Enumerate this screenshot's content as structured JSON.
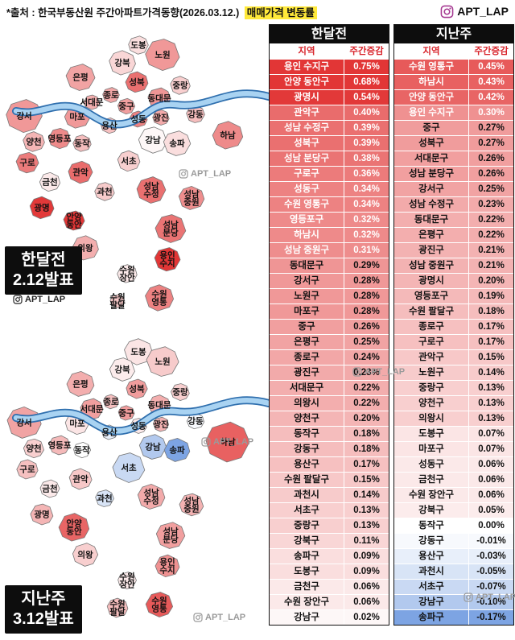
{
  "header": {
    "source_text": "*출처 : 한국부동산원 주간아파트가격동향(2026.03.12.)",
    "highlight_text": "매매가격 변동률",
    "highlight_color": "#ffe93a",
    "account": "APT_LAP"
  },
  "watermark_account": "APT_LAP",
  "maps": [
    {
      "badge_line1": "한달전",
      "badge_line2": "2.12발표",
      "table": 0
    },
    {
      "badge_line1": "지난주",
      "badge_line2": "3.12발표",
      "table": 1
    }
  ],
  "map_regions": [
    {
      "key": "도봉구",
      "lines": [
        "도봉"
      ]
    },
    {
      "key": "강북구",
      "lines": [
        "강북"
      ]
    },
    {
      "key": "노원구",
      "lines": [
        "노원"
      ]
    },
    {
      "key": "은평구",
      "lines": [
        "은평"
      ]
    },
    {
      "key": "성북구",
      "lines": [
        "성북"
      ]
    },
    {
      "key": "종로구",
      "lines": [
        "종로"
      ]
    },
    {
      "key": "중랑구",
      "lines": [
        "중랑"
      ]
    },
    {
      "key": "서대문구",
      "lines": [
        "서대문"
      ]
    },
    {
      "key": "동대문구",
      "lines": [
        "동대문"
      ]
    },
    {
      "key": "마포구",
      "lines": [
        "마포"
      ]
    },
    {
      "key": "중구",
      "lines": [
        "중구"
      ]
    },
    {
      "key": "성동구",
      "lines": [
        "성동"
      ]
    },
    {
      "key": "광진구",
      "lines": [
        "광진"
      ]
    },
    {
      "key": "강동구",
      "lines": [
        "강동"
      ]
    },
    {
      "key": "하남시",
      "lines": [
        "하남"
      ]
    },
    {
      "key": "강서구",
      "lines": [
        "강서"
      ]
    },
    {
      "key": "양천구",
      "lines": [
        "양천"
      ]
    },
    {
      "key": "영등포구",
      "lines": [
        "영등포"
      ]
    },
    {
      "key": "구로구",
      "lines": [
        "구로"
      ]
    },
    {
      "key": "동작구",
      "lines": [
        "동작"
      ]
    },
    {
      "key": "용산구",
      "lines": [
        "용산"
      ]
    },
    {
      "key": "서초구",
      "lines": [
        "서초"
      ]
    },
    {
      "key": "강남구",
      "lines": [
        "강남"
      ]
    },
    {
      "key": "송파구",
      "lines": [
        "송파"
      ]
    },
    {
      "key": "금천구",
      "lines": [
        "금천"
      ]
    },
    {
      "key": "관악구",
      "lines": [
        "관악"
      ]
    },
    {
      "key": "광명시",
      "lines": [
        "광명"
      ]
    },
    {
      "key": "과천시",
      "lines": [
        "과천"
      ]
    },
    {
      "key": "안양 동안구",
      "lines": [
        "안양",
        "동안"
      ]
    },
    {
      "key": "의왕시",
      "lines": [
        "의왕"
      ]
    },
    {
      "key": "성남 수정구",
      "lines": [
        "성남",
        "수정"
      ]
    },
    {
      "key": "성남 중원구",
      "lines": [
        "성남",
        "중원"
      ]
    },
    {
      "key": "성남 분당구",
      "lines": [
        "성남",
        "분당"
      ]
    },
    {
      "key": "용인 수지구",
      "lines": [
        "용인",
        "수지"
      ]
    },
    {
      "key": "수원 장안구",
      "lines": [
        "수원",
        "장안"
      ]
    },
    {
      "key": "수원 팔달구",
      "lines": [
        "수원",
        "팔달"
      ]
    },
    {
      "key": "수원 영통구",
      "lines": [
        "수원",
        "영통"
      ]
    }
  ],
  "colors": {
    "positive_max": "#e23636",
    "negative_max": "#407ad6",
    "title_bg": "#0d0d0d",
    "header_text": "#d8232a"
  },
  "chart_data": {
    "type": "table",
    "title": "매매가격 변동률",
    "tables": [
      {
        "title": "한달전",
        "columns": [
          "지역",
          "주간증감"
        ],
        "rows": [
          [
            "용인 수지구",
            0.75
          ],
          [
            "안양 동안구",
            0.68
          ],
          [
            "광명시",
            0.54
          ],
          [
            "관악구",
            0.4
          ],
          [
            "성남 수정구",
            0.39
          ],
          [
            "성북구",
            0.39
          ],
          [
            "성남 분당구",
            0.38
          ],
          [
            "구로구",
            0.36
          ],
          [
            "성동구",
            0.34
          ],
          [
            "수원 영통구",
            0.34
          ],
          [
            "영등포구",
            0.32
          ],
          [
            "하남시",
            0.32
          ],
          [
            "성남 중원구",
            0.31
          ],
          [
            "동대문구",
            0.29
          ],
          [
            "강서구",
            0.28
          ],
          [
            "노원구",
            0.28
          ],
          [
            "마포구",
            0.28
          ],
          [
            "중구",
            0.26
          ],
          [
            "은평구",
            0.25
          ],
          [
            "종로구",
            0.24
          ],
          [
            "광진구",
            0.23
          ],
          [
            "서대문구",
            0.22
          ],
          [
            "의왕시",
            0.22
          ],
          [
            "양천구",
            0.2
          ],
          [
            "동작구",
            0.18
          ],
          [
            "강동구",
            0.18
          ],
          [
            "용산구",
            0.17
          ],
          [
            "수원 팔달구",
            0.15
          ],
          [
            "과천시",
            0.14
          ],
          [
            "서초구",
            0.13
          ],
          [
            "중랑구",
            0.13
          ],
          [
            "강북구",
            0.11
          ],
          [
            "송파구",
            0.09
          ],
          [
            "도봉구",
            0.09
          ],
          [
            "금천구",
            0.06
          ],
          [
            "수원 장안구",
            0.06
          ],
          [
            "강남구",
            0.02
          ]
        ]
      },
      {
        "title": "지난주",
        "columns": [
          "지역",
          "주간증감"
        ],
        "rows": [
          [
            "수원 영통구",
            0.45
          ],
          [
            "하남시",
            0.43
          ],
          [
            "안양 동안구",
            0.42
          ],
          [
            "용인 수지구",
            0.3
          ],
          [
            "중구",
            0.27
          ],
          [
            "성북구",
            0.27
          ],
          [
            "서대문구",
            0.26
          ],
          [
            "성남 분당구",
            0.26
          ],
          [
            "강서구",
            0.25
          ],
          [
            "성남 수정구",
            0.23
          ],
          [
            "동대문구",
            0.22
          ],
          [
            "은평구",
            0.22
          ],
          [
            "광진구",
            0.21
          ],
          [
            "성남 중원구",
            0.21
          ],
          [
            "광명시",
            0.2
          ],
          [
            "영등포구",
            0.19
          ],
          [
            "수원 팔달구",
            0.18
          ],
          [
            "종로구",
            0.17
          ],
          [
            "구로구",
            0.17
          ],
          [
            "관악구",
            0.15
          ],
          [
            "노원구",
            0.14
          ],
          [
            "중랑구",
            0.13
          ],
          [
            "양천구",
            0.13
          ],
          [
            "의왕시",
            0.13
          ],
          [
            "도봉구",
            0.07
          ],
          [
            "마포구",
            0.07
          ],
          [
            "성동구",
            0.06
          ],
          [
            "금천구",
            0.06
          ],
          [
            "수원 장안구",
            0.06
          ],
          [
            "강북구",
            0.05
          ],
          [
            "동작구",
            0.0
          ],
          [
            "강동구",
            -0.01
          ],
          [
            "용산구",
            -0.03
          ],
          [
            "과천시",
            -0.05
          ],
          [
            "서초구",
            -0.07
          ],
          [
            "강남구",
            -0.1
          ],
          [
            "송파구",
            -0.17
          ]
        ]
      }
    ]
  }
}
